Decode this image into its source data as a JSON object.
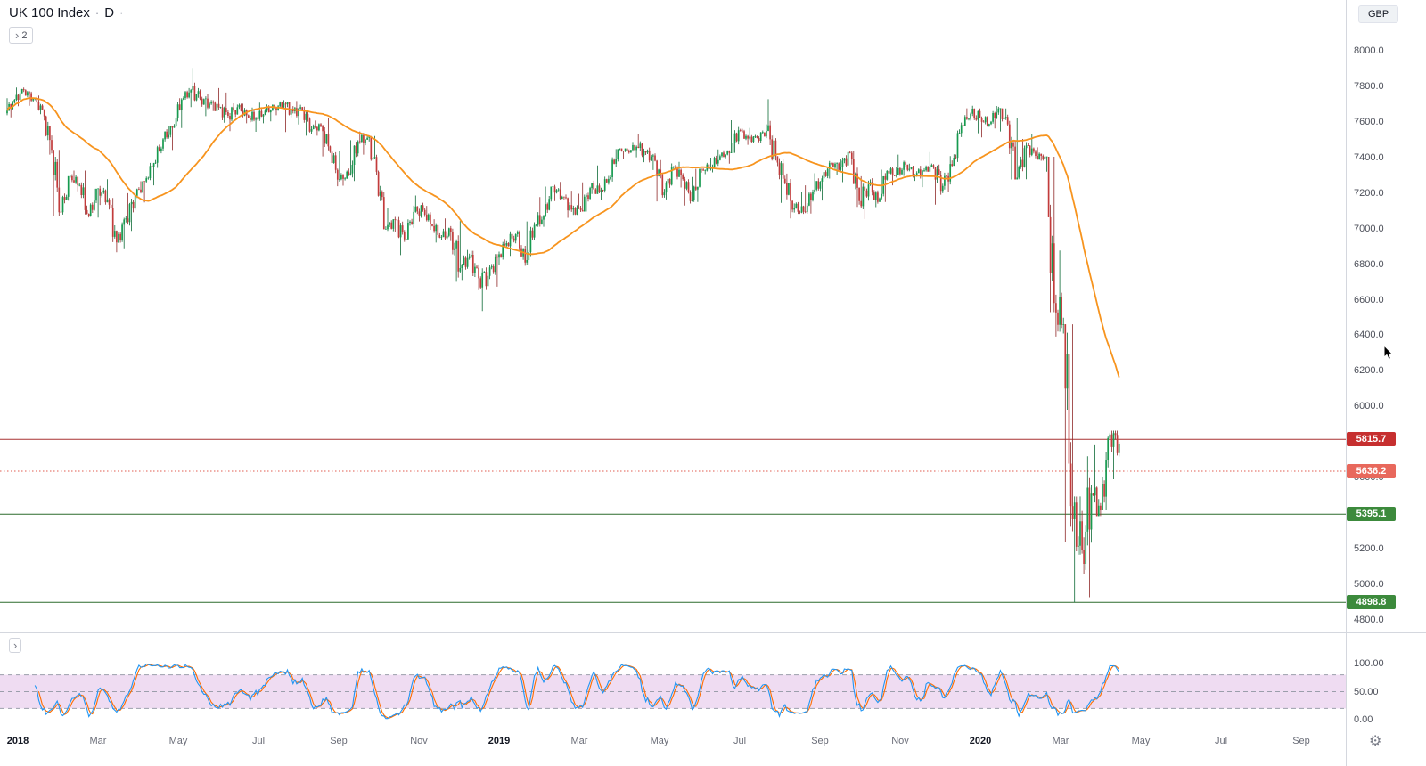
{
  "legend": {
    "symbol": "UK 100 Index",
    "separator": "·",
    "interval": "D",
    "collapse_count": "2"
  },
  "axis": {
    "currency": "GBP"
  },
  "chart_data": {
    "type": "candlestick",
    "title": "UK 100 Index",
    "interval": "D",
    "currency": "GBP",
    "series_granularity": "weekly_ohlc_anchors_Jan2018_to_midApr2020",
    "y_axis": {
      "min": 4730,
      "max": 8285,
      "tick_start": 4800,
      "tick_step": 200,
      "tick_end": 8000
    },
    "x_axis": {
      "labels": [
        {
          "t": "2018",
          "m": 0
        },
        {
          "t": "Mar",
          "m": 2
        },
        {
          "t": "May",
          "m": 4
        },
        {
          "t": "Jul",
          "m": 6
        },
        {
          "t": "Sep",
          "m": 8
        },
        {
          "t": "Nov",
          "m": 10
        },
        {
          "t": "2019",
          "m": 12
        },
        {
          "t": "Mar",
          "m": 14
        },
        {
          "t": "May",
          "m": 16
        },
        {
          "t": "Jul",
          "m": 18
        },
        {
          "t": "Sep",
          "m": 20
        },
        {
          "t": "Nov",
          "m": 22
        },
        {
          "t": "2020",
          "m": 24
        },
        {
          "t": "Mar",
          "m": 26
        },
        {
          "t": "May",
          "m": 28
        },
        {
          "t": "Jul",
          "m": 30
        },
        {
          "t": "Sep",
          "m": 32
        }
      ]
    },
    "candle_colors": {
      "up": "#169a4f",
      "down": "#c23b3b",
      "up_wick": "#0e6b37",
      "down_wick": "#8f2a2a"
    },
    "moving_average": {
      "type": "SMA",
      "period": 50,
      "color": "#f7941e"
    },
    "horizontal_lines": [
      {
        "price": 5815.7,
        "label": "5815.7",
        "line_color": "#a83232",
        "style": "solid",
        "label_bg": "#c62f2f"
      },
      {
        "price": 5636.2,
        "label": "5636.2",
        "line_color": "#e05b4f",
        "style": "dotted",
        "label_bg": "#e8685c"
      },
      {
        "price": 5395.1,
        "label": "5395.1",
        "line_color": "#2d6b2d",
        "style": "solid",
        "label_bg": "#3c8a3c"
      },
      {
        "price": 4898.8,
        "label": "4898.8",
        "line_color": "#2d6b2d",
        "style": "solid",
        "label_bg": "#3c8a3c"
      }
    ],
    "stochastic": {
      "k_period": 14,
      "k_smooth": 3,
      "d_period": 3,
      "k_color": "#2196f3",
      "d_color": "#ff6d00",
      "band": [
        20,
        80
      ],
      "band_fill": "rgba(156,39,176,0.16)",
      "scale_values": [
        100,
        50,
        0
      ],
      "scale_labels": [
        "100.00",
        "50.00",
        "0.00"
      ]
    },
    "candles_weekly_ohlc": [
      [
        7648,
        7733,
        7625,
        7724
      ],
      [
        7724,
        7793,
        7688,
        7778
      ],
      [
        7778,
        7783,
        7690,
        7731
      ],
      [
        7731,
        7748,
        7643,
        7665
      ],
      [
        7665,
        7671,
        7416,
        7443
      ],
      [
        7443,
        7443,
        7073,
        7092
      ],
      [
        7092,
        7294,
        7079,
        7294
      ],
      [
        7294,
        7326,
        7210,
        7244
      ],
      [
        7244,
        7326,
        7063,
        7070
      ],
      [
        7070,
        7224,
        7062,
        7225
      ],
      [
        7225,
        7277,
        7133,
        7164
      ],
      [
        7164,
        7172,
        6867,
        6922
      ],
      [
        6922,
        7069,
        6889,
        7057
      ],
      [
        7057,
        7199,
        6987,
        7184
      ],
      [
        7184,
        7266,
        7147,
        7265
      ],
      [
        7265,
        7369,
        7243,
        7368
      ],
      [
        7368,
        7509,
        7341,
        7502
      ],
      [
        7502,
        7578,
        7442,
        7567
      ],
      [
        7567,
        7733,
        7565,
        7725
      ],
      [
        7725,
        7790,
        7683,
        7779
      ],
      [
        7779,
        7903,
        7717,
        7730
      ],
      [
        7730,
        7757,
        7632,
        7702
      ],
      [
        7702,
        7790,
        7660,
        7681
      ],
      [
        7681,
        7765,
        7595,
        7634
      ],
      [
        7634,
        7704,
        7548,
        7682
      ],
      [
        7682,
        7702,
        7592,
        7637
      ],
      [
        7637,
        7680,
        7544,
        7618
      ],
      [
        7618,
        7708,
        7592,
        7662
      ],
      [
        7662,
        7698,
        7603,
        7679
      ],
      [
        7679,
        7722,
        7637,
        7701
      ],
      [
        7701,
        7713,
        7543,
        7659
      ],
      [
        7659,
        7717,
        7585,
        7667
      ],
      [
        7667,
        7685,
        7522,
        7559
      ],
      [
        7559,
        7607,
        7522,
        7577
      ],
      [
        7577,
        7621,
        7406,
        7432
      ],
      [
        7432,
        7438,
        7238,
        7277
      ],
      [
        7277,
        7337,
        7241,
        7304
      ],
      [
        7304,
        7497,
        7267,
        7490
      ],
      [
        7490,
        7546,
        7416,
        7510
      ],
      [
        7510,
        7520,
        7281,
        7319
      ],
      [
        7319,
        7326,
        6996,
        6996
      ],
      [
        6996,
        7118,
        6983,
        7050
      ],
      [
        7050,
        7101,
        6851,
        6939
      ],
      [
        6939,
        7129,
        6939,
        7094
      ],
      [
        7094,
        7186,
        7040,
        7105
      ],
      [
        7105,
        7128,
        6993,
        7014
      ],
      [
        7014,
        7053,
        6921,
        6953
      ],
      [
        6953,
        7057,
        6930,
        6980
      ],
      [
        6980,
        7042,
        6701,
        6778
      ],
      [
        6778,
        6880,
        6711,
        6845
      ],
      [
        6845,
        6875,
        6653,
        6721
      ],
      [
        6721,
        6784,
        6536,
        6734
      ],
      [
        6734,
        6857,
        6673,
        6837
      ],
      [
        6837,
        6942,
        6795,
        6918
      ],
      [
        6918,
        7000,
        6847,
        6968
      ],
      [
        6968,
        6990,
        6791,
        6809
      ],
      [
        6809,
        7040,
        6797,
        7020
      ],
      [
        7020,
        7177,
        7010,
        7071
      ],
      [
        7071,
        7236,
        7063,
        7236
      ],
      [
        7236,
        7262,
        7155,
        7179
      ],
      [
        7179,
        7213,
        7061,
        7107
      ],
      [
        7107,
        7196,
        7077,
        7104
      ],
      [
        7104,
        7260,
        7096,
        7228
      ],
      [
        7228,
        7355,
        7195,
        7208
      ],
      [
        7208,
        7296,
        7162,
        7279
      ],
      [
        7279,
        7447,
        7264,
        7447
      ],
      [
        7447,
        7451,
        7392,
        7437
      ],
      [
        7437,
        7487,
        7401,
        7460
      ],
      [
        7460,
        7529,
        7373,
        7428
      ],
      [
        7428,
        7456,
        7329,
        7381
      ],
      [
        7381,
        7385,
        7153,
        7203
      ],
      [
        7203,
        7366,
        7164,
        7349
      ],
      [
        7349,
        7375,
        7231,
        7278
      ],
      [
        7278,
        7290,
        7130,
        7162
      ],
      [
        7162,
        7336,
        7150,
        7332
      ],
      [
        7332,
        7399,
        7306,
        7346
      ],
      [
        7346,
        7445,
        7316,
        7408
      ],
      [
        7408,
        7440,
        7365,
        7426
      ],
      [
        7426,
        7609,
        7426,
        7553
      ],
      [
        7553,
        7561,
        7471,
        7506
      ],
      [
        7506,
        7566,
        7480,
        7509
      ],
      [
        7509,
        7586,
        7480,
        7549
      ],
      [
        7549,
        7727,
        7382,
        7407
      ],
      [
        7407,
        7407,
        7145,
        7254
      ],
      [
        7254,
        7309,
        7057,
        7117
      ],
      [
        7117,
        7204,
        7083,
        7095
      ],
      [
        7095,
        7243,
        7085,
        7207
      ],
      [
        7207,
        7311,
        7158,
        7282
      ],
      [
        7282,
        7390,
        7281,
        7367
      ],
      [
        7367,
        7391,
        7302,
        7345
      ],
      [
        7345,
        7437,
        7261,
        7426
      ],
      [
        7426,
        7434,
        7122,
        7155
      ],
      [
        7155,
        7294,
        7054,
        7247
      ],
      [
        7247,
        7283,
        7121,
        7150
      ],
      [
        7150,
        7331,
        7150,
        7324
      ],
      [
        7324,
        7345,
        7243,
        7302
      ],
      [
        7302,
        7416,
        7296,
        7359
      ],
      [
        7359,
        7365,
        7268,
        7303
      ],
      [
        7303,
        7353,
        7233,
        7327
      ],
      [
        7327,
        7430,
        7320,
        7346
      ],
      [
        7346,
        7360,
        7135,
        7240
      ],
      [
        7240,
        7408,
        7205,
        7353
      ],
      [
        7353,
        7596,
        7353,
        7582
      ],
      [
        7582,
        7676,
        7576,
        7645
      ],
      [
        7645,
        7690,
        7536,
        7622
      ],
      [
        7622,
        7632,
        7513,
        7588
      ],
      [
        7588,
        7689,
        7563,
        7675
      ],
      [
        7675,
        7675,
        7546,
        7586
      ],
      [
        7586,
        7622,
        7276,
        7286
      ],
      [
        7286,
        7504,
        7277,
        7467
      ],
      [
        7467,
        7530,
        7395,
        7409
      ],
      [
        7409,
        7457,
        7381,
        7404
      ],
      [
        7404,
        7404,
        6530,
        6581
      ],
      [
        6581,
        6877,
        6393,
        6462
      ],
      [
        6462,
        6462,
        5237,
        5366
      ],
      [
        5366,
        5494,
        4899,
        5191
      ],
      [
        5191,
        5720,
        4928,
        5510
      ],
      [
        5510,
        5782,
        5384,
        5416
      ],
      [
        5416,
        5852,
        5416,
        5843
      ],
      [
        5843,
        5864,
        5591,
        5787
      ]
    ]
  }
}
